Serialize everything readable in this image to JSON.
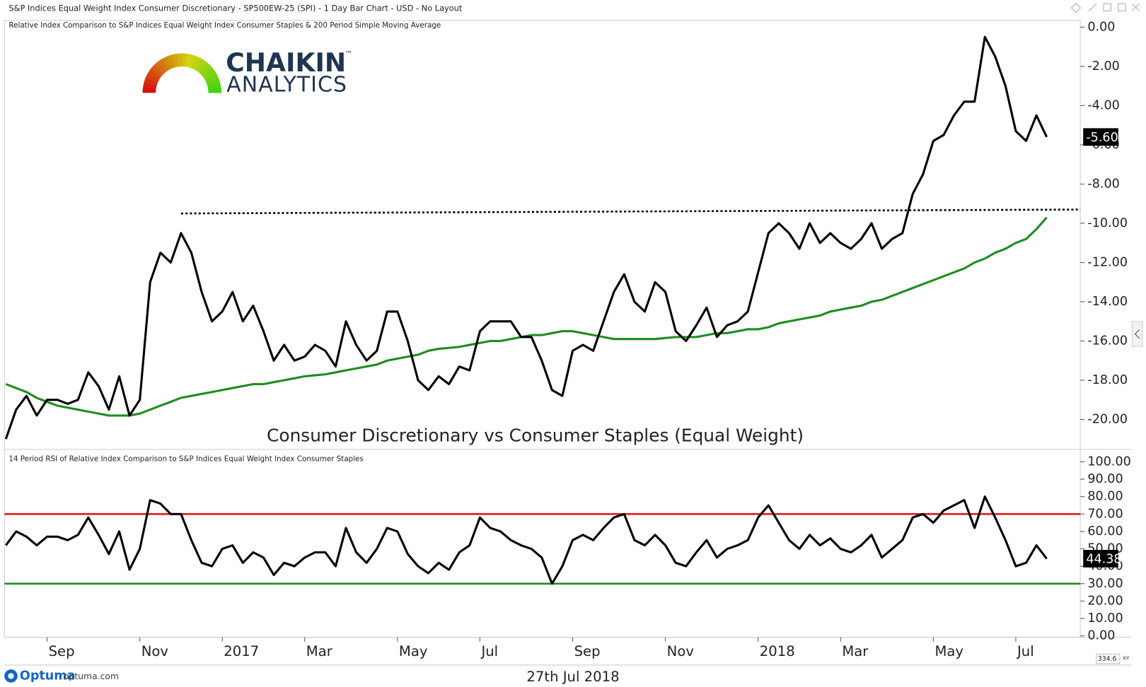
{
  "header": "S&P Indices Equal Weight Index Consumer Discretionary - SP500EW-25 (SPI) - 1 Day Bar Chart - USD - No Layout",
  "logo": {
    "name": "CHAIKIN",
    "tm": "™",
    "sub": "ANALYTICS"
  },
  "footer": {
    "brand": "Optuma",
    "site": "optuma.com",
    "date": "27th Jul 2018",
    "scale": "334.6",
    "mode": "XY"
  },
  "chart_data": [
    {
      "type": "line",
      "title": "Relative Index Comparison to S&P Indices Equal Weight Index Consumer Staples & 200 Period Simple Moving Average",
      "annotation": "Consumer Discretionary vs Consumer Staples (Equal Weight)",
      "categories": [
        null,
        null,
        null,
        null,
        "Sep",
        null,
        null,
        null,
        null,
        null,
        null,
        null,
        null,
        "Nov",
        null,
        null,
        null,
        null,
        null,
        null,
        null,
        "2017",
        null,
        null,
        null,
        null,
        null,
        null,
        null,
        "Mar",
        null,
        null,
        null,
        null,
        null,
        null,
        null,
        null,
        "May",
        null,
        null,
        null,
        null,
        null,
        null,
        null,
        "Jul",
        null,
        null,
        null,
        null,
        null,
        null,
        null,
        null,
        "Sep",
        null,
        null,
        null,
        null,
        null,
        null,
        null,
        null,
        "Nov",
        null,
        null,
        null,
        null,
        null,
        null,
        null,
        null,
        "2018",
        null,
        null,
        null,
        null,
        null,
        null,
        null,
        "Mar",
        null,
        null,
        null,
        null,
        null,
        null,
        null,
        null,
        "May",
        null,
        null,
        null,
        null,
        null,
        null,
        null,
        "Jul",
        null,
        null,
        null
      ],
      "series": [
        {
          "color": "#000000",
          "values": [
            -21.0,
            -19.5,
            -18.8,
            -19.8,
            -19.0,
            -19.0,
            -19.2,
            -19.0,
            -17.6,
            -18.3,
            -19.5,
            -17.8,
            -19.8,
            -19.0,
            -13.0,
            -11.5,
            -12.0,
            -10.5,
            -11.5,
            -13.5,
            -15.0,
            -14.5,
            -13.5,
            -15.0,
            -14.2,
            -15.5,
            -17.0,
            -16.2,
            -17.0,
            -16.8,
            -16.2,
            -16.5,
            -17.3,
            -15.0,
            -16.2,
            -17.0,
            -16.5,
            -14.5,
            -14.5,
            -16.0,
            -18.0,
            -18.5,
            -17.8,
            -18.2,
            -17.3,
            -17.5,
            -15.5,
            -15.0,
            -15.0,
            -15.0,
            -15.8,
            -15.8,
            -17.0,
            -18.5,
            -18.8,
            -16.5,
            -16.2,
            -16.5,
            -15.0,
            -13.5,
            -12.6,
            -14.0,
            -14.5,
            -13.0,
            -13.5,
            -15.5,
            -16.0,
            -15.2,
            -14.3,
            -15.8,
            -15.2,
            -15.0,
            -14.5,
            -12.5,
            -10.5,
            -10.0,
            -10.5,
            -11.3,
            -10.0,
            -11.0,
            -10.5,
            -11.0,
            -11.3,
            -10.8,
            -10.0,
            -11.3,
            -10.8,
            -10.5,
            -8.5,
            -7.5,
            -5.8,
            -5.5,
            -4.5,
            -3.8,
            -3.8,
            -0.5,
            -1.5,
            -3.0,
            -5.3,
            -5.8,
            -4.5,
            -5.6
          ],
          "value_labels": [
            null,
            null,
            null,
            null,
            null,
            null,
            null,
            null,
            null,
            null,
            null,
            null,
            null,
            null,
            null,
            null,
            null,
            null,
            null,
            null,
            null,
            null,
            null,
            null,
            null,
            null,
            null,
            null,
            null,
            null,
            null,
            null,
            null,
            null,
            null,
            null,
            null,
            null,
            null,
            null,
            null,
            null,
            null,
            null,
            null,
            null,
            null,
            null,
            null,
            null,
            null,
            null,
            null,
            null,
            null,
            null,
            null,
            null,
            null,
            null,
            null,
            null,
            null,
            null,
            null,
            null,
            null,
            null,
            null,
            null,
            null,
            null,
            null,
            null,
            null,
            null,
            null,
            null,
            null,
            null,
            null,
            null,
            null,
            null,
            null,
            null,
            null,
            null,
            null,
            null,
            null,
            null,
            null,
            null,
            null,
            null,
            null,
            null,
            null,
            null,
            null,
            "-5.60"
          ]
        },
        {
          "color": "#1e8c1e",
          "values": [
            -18.2,
            -18.4,
            -18.6,
            -18.9,
            -19.1,
            -19.3,
            -19.4,
            -19.5,
            -19.6,
            -19.7,
            -19.8,
            -19.8,
            -19.8,
            -19.7,
            -19.5,
            -19.3,
            -19.1,
            -18.9,
            -18.8,
            -18.7,
            -18.6,
            -18.5,
            -18.4,
            -18.3,
            -18.2,
            -18.2,
            -18.1,
            -18.0,
            -17.9,
            -17.8,
            -17.75,
            -17.7,
            -17.6,
            -17.5,
            -17.4,
            -17.3,
            -17.2,
            -17.0,
            -16.9,
            -16.8,
            -16.7,
            -16.5,
            -16.4,
            -16.35,
            -16.3,
            -16.2,
            -16.1,
            -16.0,
            -16.0,
            -15.9,
            -15.8,
            -15.7,
            -15.7,
            -15.6,
            -15.5,
            -15.5,
            -15.6,
            -15.7,
            -15.8,
            -15.9,
            -15.9,
            -15.9,
            -15.9,
            -15.9,
            -15.85,
            -15.8,
            -15.8,
            -15.8,
            -15.7,
            -15.6,
            -15.6,
            -15.5,
            -15.4,
            -15.4,
            -15.3,
            -15.1,
            -15.0,
            -14.9,
            -14.8,
            -14.7,
            -14.5,
            -14.4,
            -14.3,
            -14.2,
            -14.0,
            -13.9,
            -13.7,
            -13.5,
            -13.3,
            -13.1,
            -12.9,
            -12.7,
            -12.5,
            -12.3,
            -12.0,
            -11.8,
            -11.5,
            -11.3,
            -11.0,
            -10.8,
            -10.3,
            -9.7
          ]
        }
      ],
      "trendline": {
        "color": "#000000",
        "dash": "dotted",
        "x": [
          17,
          104.3
        ],
        "values": [
          -9.5,
          -9.3
        ]
      },
      "ylim": [
        -21.53,
        0.34
      ],
      "yticks": [
        {
          "value": 0,
          "label": "0.00"
        },
        {
          "value": -2,
          "label": "-2.00"
        },
        {
          "value": -4,
          "label": "-4.00"
        },
        {
          "value": -6,
          "label": "-6.00"
        },
        {
          "value": -8,
          "label": "-8.00"
        },
        {
          "value": -10,
          "label": "-10.00"
        },
        {
          "value": -12,
          "label": "-12.00"
        },
        {
          "value": -14,
          "label": "-14.00"
        },
        {
          "value": -16,
          "label": "-16.00"
        },
        {
          "value": -18,
          "label": "-18.00"
        },
        {
          "value": -20,
          "label": "-20.00"
        }
      ]
    },
    {
      "type": "line",
      "title": "14 Period RSI of Relative Index Comparison to S&P Indices Equal Weight Index Consumer Staples",
      "series": [
        {
          "color": "#000000",
          "values": [
            52,
            60,
            57,
            52,
            57,
            57,
            55,
            58,
            68,
            58,
            47,
            60,
            38,
            50,
            78,
            76,
            70,
            70,
            55,
            42,
            40,
            50,
            52,
            42,
            48,
            45,
            35,
            42,
            40,
            45,
            48,
            48,
            40,
            62,
            48,
            42,
            50,
            62,
            60,
            47,
            40,
            36,
            42,
            38,
            48,
            52,
            68,
            62,
            60,
            55,
            52,
            50,
            45,
            30,
            40,
            55,
            58,
            55,
            62,
            68,
            70,
            55,
            52,
            58,
            52,
            42,
            40,
            48,
            55,
            45,
            50,
            52,
            55,
            68,
            75,
            65,
            55,
            50,
            58,
            52,
            56,
            50,
            48,
            52,
            58,
            45,
            50,
            55,
            68,
            70,
            65,
            72,
            75,
            78,
            62,
            80,
            68,
            55,
            40,
            42,
            52,
            44.38
          ]
        }
      ],
      "hlines": [
        {
          "value": 70,
          "color": "#e41a1a"
        },
        {
          "value": 30,
          "color": "#1e8c1e"
        }
      ],
      "ylim": [
        -0.8,
        107.1
      ],
      "yticks": [
        {
          "value": 0,
          "label": "0.00"
        },
        {
          "value": 10,
          "label": "10.00"
        },
        {
          "value": 20,
          "label": "20.00"
        },
        {
          "value": 30,
          "label": "30.00"
        },
        {
          "value": 40,
          "label": "40.00"
        },
        {
          "value": 50,
          "label": "50.00"
        },
        {
          "value": 60,
          "label": "60.00"
        },
        {
          "value": 70,
          "label": "70.00"
        },
        {
          "value": 80,
          "label": "80.00"
        },
        {
          "value": 90,
          "label": "90.00"
        },
        {
          "value": 100,
          "label": "100.00"
        }
      ]
    }
  ]
}
